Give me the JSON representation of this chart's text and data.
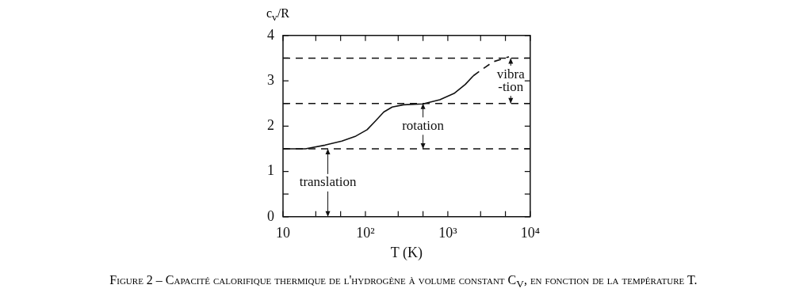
{
  "chart_data": {
    "type": "line",
    "xlabel": "T (K)",
    "ylabel": "c$_{v}$/R",
    "log": "x",
    "xlim": [
      10,
      10000
    ],
    "ylim": [
      0,
      4
    ],
    "xticks": [
      {
        "value": 10,
        "label": "10"
      },
      {
        "value": 25,
        "label": null
      },
      {
        "value": 50,
        "label": null
      },
      {
        "value": 100,
        "label": "10²"
      },
      {
        "value": 250,
        "label": null
      },
      {
        "value": 500,
        "label": null
      },
      {
        "value": 1000,
        "label": "10³"
      },
      {
        "value": 2500,
        "label": null
      },
      {
        "value": 5000,
        "label": null
      },
      {
        "value": 10000,
        "label": "10⁴"
      }
    ],
    "yticks": [
      0,
      {
        "value": 0.5,
        "label": null
      },
      1,
      {
        "value": 1.5,
        "label": null
      },
      2,
      {
        "value": 2.5,
        "label": null
      },
      3,
      {
        "value": 3.5,
        "label": null
      },
      4
    ],
    "series": [
      {
        "color": "#111111",
        "line_style": "solid",
        "x": [
          10,
          18.7,
          32.4,
          51.7,
          76.6,
          104.8,
          132,
          167,
          211,
          290,
          500,
          800,
          1190,
          1630,
          2040
        ],
        "values": [
          1.5,
          1.5,
          1.58,
          1.67,
          1.78,
          1.92,
          2.11,
          2.31,
          2.42,
          2.47,
          2.49,
          2.58,
          2.72,
          2.92,
          3.11
        ]
      },
      {
        "color": "#111111",
        "line_style": "dashed",
        "x": [
          2040,
          2600,
          3560,
          5520
        ],
        "values": [
          3.11,
          3.25,
          3.42,
          3.53
        ]
      }
    ],
    "ref_lines": [
      {
        "axis": "y",
        "value": 1.5,
        "color": "#111111",
        "line_style": "dashed"
      },
      {
        "axis": "y",
        "value": 2.5,
        "color": "#111111",
        "line_style": "dashed"
      },
      {
        "axis": "y",
        "value": 3.5,
        "color": "#111111",
        "line_style": "dashed"
      }
    ],
    "annotations": [
      {
        "text": "translation",
        "x": 35,
        "y": 1.5
      },
      {
        "text": "rotation",
        "x": 500,
        "y": 2.5
      },
      {
        "text": "vibra\n-tion",
        "x": 5800,
        "y": 3.5
      },
      "Figure 2 – Capacité calorifique thermique de l'hydrogène à volume constant C$_{V}$, en fonction de la température T."
    ],
    "legend": false
  }
}
